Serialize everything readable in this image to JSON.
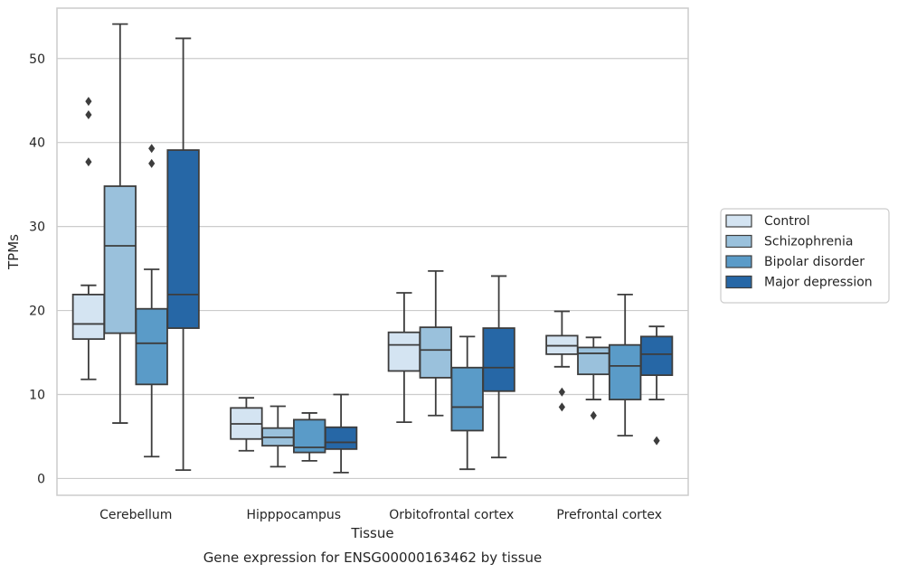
{
  "chart_data": {
    "type": "box",
    "title": "",
    "caption": "Gene expression for ENSG00000163462 by tissue",
    "xlabel": "Tissue",
    "ylabel": "TPMs",
    "ylim": [
      -2,
      56
    ],
    "yticks": [
      0,
      10,
      20,
      30,
      40,
      50
    ],
    "grid": "horizontal",
    "legend_position": "center-right",
    "categories": [
      "Cerebellum",
      "Hipppocampus",
      "Orbitofrontal cortex",
      "Prefrontal cortex"
    ],
    "series": [
      {
        "name": "Control",
        "color": "#d4e4f2",
        "boxes": [
          {
            "whisker_low": 11.8,
            "q1": 16.6,
            "median": 18.4,
            "q3": 21.9,
            "whisker_high": 23.0,
            "outliers": [
              37.7,
              43.3,
              44.9
            ]
          },
          {
            "whisker_low": 3.3,
            "q1": 4.7,
            "median": 6.5,
            "q3": 8.4,
            "whisker_high": 9.6,
            "outliers": []
          },
          {
            "whisker_low": 6.7,
            "q1": 12.8,
            "median": 15.9,
            "q3": 17.4,
            "whisker_high": 22.1,
            "outliers": []
          },
          {
            "whisker_low": 13.3,
            "q1": 14.8,
            "median": 15.8,
            "q3": 17.0,
            "whisker_high": 19.9,
            "outliers": [
              8.5,
              10.3
            ]
          }
        ]
      },
      {
        "name": "Schizophrenia",
        "color": "#9ac1dc",
        "boxes": [
          {
            "whisker_low": 6.6,
            "q1": 17.3,
            "median": 27.7,
            "q3": 34.8,
            "whisker_high": 54.1,
            "outliers": []
          },
          {
            "whisker_low": 1.4,
            "q1": 3.9,
            "median": 4.9,
            "q3": 6.0,
            "whisker_high": 8.6,
            "outliers": []
          },
          {
            "whisker_low": 7.5,
            "q1": 12.0,
            "median": 15.3,
            "q3": 18.0,
            "whisker_high": 24.7,
            "outliers": []
          },
          {
            "whisker_low": 9.4,
            "q1": 12.4,
            "median": 14.9,
            "q3": 15.6,
            "whisker_high": 16.8,
            "outliers": [
              7.5
            ]
          }
        ]
      },
      {
        "name": "Bipolar disorder",
        "color": "#5a9bc8",
        "boxes": [
          {
            "whisker_low": 2.6,
            "q1": 11.2,
            "median": 16.1,
            "q3": 20.2,
            "whisker_high": 24.9,
            "outliers": [
              37.5,
              39.3
            ]
          },
          {
            "whisker_low": 2.1,
            "q1": 3.1,
            "median": 3.7,
            "q3": 7.0,
            "whisker_high": 7.8,
            "outliers": []
          },
          {
            "whisker_low": 1.1,
            "q1": 5.7,
            "median": 8.5,
            "q3": 13.2,
            "whisker_high": 16.9,
            "outliers": []
          },
          {
            "whisker_low": 5.1,
            "q1": 9.4,
            "median": 13.4,
            "q3": 15.9,
            "whisker_high": 21.9,
            "outliers": []
          }
        ]
      },
      {
        "name": "Major depression",
        "color": "#2667a6",
        "boxes": [
          {
            "whisker_low": 1.0,
            "q1": 17.9,
            "median": 21.9,
            "q3": 39.1,
            "whisker_high": 52.4,
            "outliers": []
          },
          {
            "whisker_low": 0.7,
            "q1": 3.5,
            "median": 4.3,
            "q3": 6.1,
            "whisker_high": 10.0,
            "outliers": []
          },
          {
            "whisker_low": 2.5,
            "q1": 10.4,
            "median": 13.2,
            "q3": 17.9,
            "whisker_high": 24.1,
            "outliers": []
          },
          {
            "whisker_low": 9.4,
            "q1": 12.3,
            "median": 14.8,
            "q3": 16.9,
            "whisker_high": 18.1,
            "outliers": [
              4.5
            ]
          }
        ]
      }
    ]
  }
}
